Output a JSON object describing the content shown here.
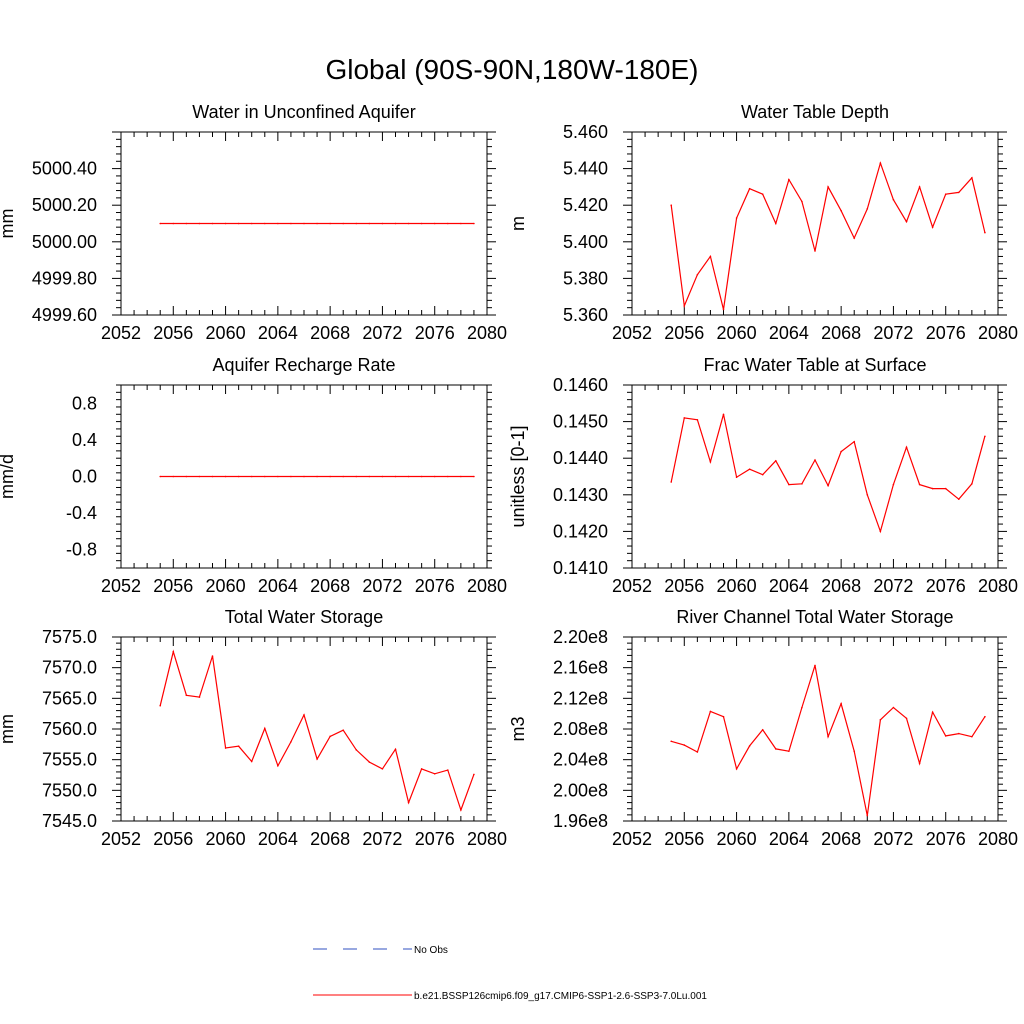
{
  "title": "Global (90S-90N,180W-180E)",
  "colors": {
    "model_line": "#ff0000",
    "obs_line": "#3050c0",
    "axis": "#000000"
  },
  "legend": {
    "obs_label": "No Obs",
    "model_label": "b.e21.BSSP126cmip6.f09_g17.CMIP6-SSP1-2.6-SSP3-7.0Lu.001"
  },
  "chart_data": [
    {
      "type": "line",
      "title": "Water in Unconfined Aquifer",
      "xlabel": "",
      "ylabel": "mm",
      "xlim": [
        2052,
        2080
      ],
      "ylim": [
        4999.6,
        5000.6
      ],
      "xticks": [
        "2052",
        "2056",
        "2060",
        "2064",
        "2068",
        "2072",
        "2076",
        "2080"
      ],
      "yticks": [
        "4999.60",
        "4999.80",
        "5000.00",
        "5000.20",
        "5000.40"
      ],
      "x": [
        2055,
        2056,
        2057,
        2058,
        2059,
        2060,
        2061,
        2062,
        2063,
        2064,
        2065,
        2066,
        2067,
        2068,
        2069,
        2070,
        2071,
        2072,
        2073,
        2074,
        2075,
        2076,
        2077,
        2078,
        2079
      ],
      "values": [
        5000.1,
        5000.1,
        5000.1,
        5000.1,
        5000.1,
        5000.1,
        5000.1,
        5000.1,
        5000.1,
        5000.1,
        5000.1,
        5000.1,
        5000.1,
        5000.1,
        5000.1,
        5000.1,
        5000.1,
        5000.1,
        5000.1,
        5000.1,
        5000.1,
        5000.1,
        5000.1,
        5000.1,
        5000.1
      ]
    },
    {
      "type": "line",
      "title": "Water Table Depth",
      "xlabel": "",
      "ylabel": "m",
      "xlim": [
        2052,
        2080
      ],
      "ylim": [
        5.36,
        5.46
      ],
      "xticks": [
        "2052",
        "2056",
        "2060",
        "2064",
        "2068",
        "2072",
        "2076",
        "2080"
      ],
      "yticks": [
        "5.360",
        "5.380",
        "5.400",
        "5.420",
        "5.440",
        "5.460"
      ],
      "x": [
        2055,
        2056,
        2057,
        2058,
        2059,
        2060,
        2061,
        2062,
        2063,
        2064,
        2065,
        2066,
        2067,
        2068,
        2069,
        2070,
        2071,
        2072,
        2073,
        2074,
        2075,
        2076,
        2077,
        2078,
        2079
      ],
      "values": [
        5.42,
        5.365,
        5.382,
        5.392,
        5.363,
        5.413,
        5.429,
        5.426,
        5.41,
        5.434,
        5.422,
        5.395,
        5.43,
        5.417,
        5.402,
        5.418,
        5.443,
        5.423,
        5.411,
        5.43,
        5.408,
        5.426,
        5.427,
        5.435,
        5.405
      ]
    },
    {
      "type": "line",
      "title": "Aquifer Recharge Rate",
      "xlabel": "",
      "ylabel": "mm/d",
      "xlim": [
        2052,
        2080
      ],
      "ylim": [
        -1.0,
        1.0
      ],
      "xticks": [
        "2052",
        "2056",
        "2060",
        "2064",
        "2068",
        "2072",
        "2076",
        "2080"
      ],
      "yticks": [
        "-0.8",
        "-0.4",
        "0.0",
        "0.4",
        "0.8"
      ],
      "x": [
        2055,
        2056,
        2057,
        2058,
        2059,
        2060,
        2061,
        2062,
        2063,
        2064,
        2065,
        2066,
        2067,
        2068,
        2069,
        2070,
        2071,
        2072,
        2073,
        2074,
        2075,
        2076,
        2077,
        2078,
        2079
      ],
      "values": [
        0,
        0,
        0,
        0,
        0,
        0,
        0,
        0,
        0,
        0,
        0,
        0,
        0,
        0,
        0,
        0,
        0,
        0,
        0,
        0,
        0,
        0,
        0,
        0,
        0
      ]
    },
    {
      "type": "line",
      "title": "Frac Water Table at Surface",
      "xlabel": "",
      "ylabel": "unitless [0-1]",
      "xlim": [
        2052,
        2080
      ],
      "ylim": [
        0.141,
        0.146
      ],
      "xticks": [
        "2052",
        "2056",
        "2060",
        "2064",
        "2068",
        "2072",
        "2076",
        "2080"
      ],
      "yticks": [
        "0.1410",
        "0.1420",
        "0.1430",
        "0.1440",
        "0.1450",
        "0.1460"
      ],
      "x": [
        2055,
        2056,
        2057,
        2058,
        2059,
        2060,
        2061,
        2062,
        2063,
        2064,
        2065,
        2066,
        2067,
        2068,
        2069,
        2070,
        2071,
        2072,
        2073,
        2074,
        2075,
        2076,
        2077,
        2078,
        2079
      ],
      "values": [
        0.14335,
        0.1451,
        0.14505,
        0.1439,
        0.1452,
        0.14348,
        0.1437,
        0.14355,
        0.14393,
        0.14328,
        0.1433,
        0.14395,
        0.14325,
        0.14418,
        0.14445,
        0.143,
        0.142,
        0.14328,
        0.1443,
        0.14328,
        0.14317,
        0.14317,
        0.14288,
        0.1433,
        0.1446
      ]
    },
    {
      "type": "line",
      "title": "Total Water Storage",
      "xlabel": "",
      "ylabel": "mm",
      "xlim": [
        2052,
        2080
      ],
      "ylim": [
        7545.0,
        7575.0
      ],
      "xticks": [
        "2052",
        "2056",
        "2060",
        "2064",
        "2068",
        "2072",
        "2076",
        "2080"
      ],
      "yticks": [
        "7545.0",
        "7550.0",
        "7555.0",
        "7560.0",
        "7565.0",
        "7570.0",
        "7575.0"
      ],
      "x": [
        2055,
        2056,
        2057,
        2058,
        2059,
        2060,
        2061,
        2062,
        2063,
        2064,
        2065,
        2066,
        2067,
        2068,
        2069,
        2070,
        2071,
        2072,
        2073,
        2074,
        2075,
        2076,
        2077,
        2078,
        2079
      ],
      "values": [
        7563.8,
        7572.6,
        7565.5,
        7565.2,
        7571.9,
        7556.9,
        7557.2,
        7554.7,
        7560.1,
        7554.0,
        7557.9,
        7562.3,
        7555.1,
        7558.8,
        7559.8,
        7556.6,
        7554.6,
        7553.5,
        7556.7,
        7548.0,
        7553.5,
        7552.7,
        7553.3,
        7546.8,
        7552.6
      ]
    },
    {
      "type": "line",
      "title": "River Channel Total Water Storage",
      "xlabel": "",
      "ylabel": "m3",
      "xlim": [
        2052,
        2080
      ],
      "ylim": [
        196000000.0,
        220000000.0
      ],
      "xticks": [
        "2052",
        "2056",
        "2060",
        "2064",
        "2068",
        "2072",
        "2076",
        "2080"
      ],
      "yticks": [
        "1.96e8",
        "2.00e8",
        "2.04e8",
        "2.08e8",
        "2.12e8",
        "2.16e8",
        "2.20e8"
      ],
      "x": [
        2055,
        2056,
        2057,
        2058,
        2059,
        2060,
        2061,
        2062,
        2063,
        2064,
        2065,
        2066,
        2067,
        2068,
        2069,
        2070,
        2071,
        2072,
        2073,
        2074,
        2075,
        2076,
        2077,
        2078,
        2079
      ],
      "values": [
        206400000.0,
        205900000.0,
        205000000.0,
        210300000.0,
        209600000.0,
        202800000.0,
        205800000.0,
        207900000.0,
        205400000.0,
        205100000.0,
        210800000.0,
        216300000.0,
        207000000.0,
        211300000.0,
        205100000.0,
        196700000.0,
        209200000.0,
        210800000.0,
        209400000.0,
        203500000.0,
        210200000.0,
        207100000.0,
        207400000.0,
        207000000.0,
        209600000.0
      ]
    }
  ]
}
